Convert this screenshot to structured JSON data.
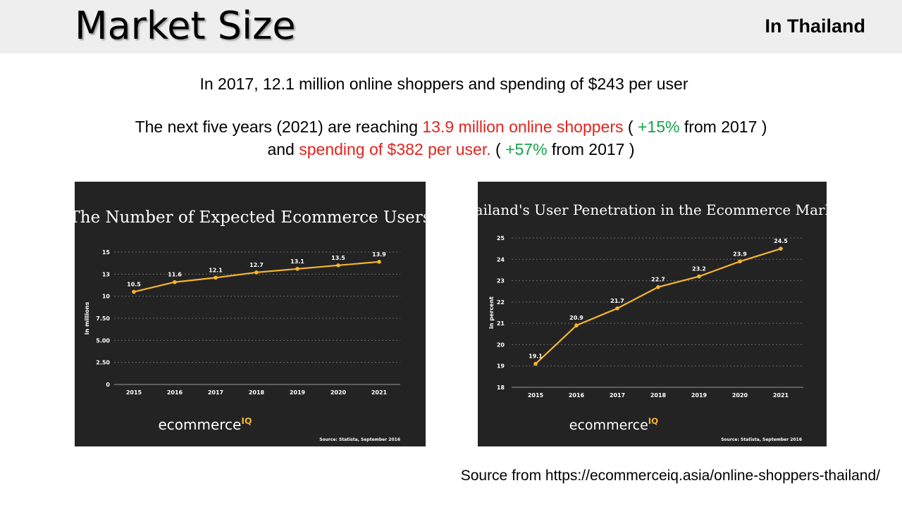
{
  "header": {
    "title": "Market Size",
    "region": "In Thailand"
  },
  "summary": {
    "line1": "In 2017, 12.1 million online shoppers and spending of $243 per user",
    "line2_a": "The next five years (2021) are reaching ",
    "line2_red": "13.9 million online shoppers",
    "line2_b": " ( ",
    "line2_green": "+15%",
    "line2_c": " from 2017 )",
    "line3_a": "and ",
    "line3_red": "spending of $382 per user.",
    "line3_b": " ( ",
    "line3_green": "+57%",
    "line3_c": " from 2017 )"
  },
  "source": "Source from https://ecommerceiq.asia/online-shoppers-thailand/",
  "colors": {
    "line": "#f5b52e",
    "panel": "#232323",
    "red": "#e3241d",
    "green": "#16a34a"
  },
  "chart_data": [
    {
      "type": "line",
      "title": "The Number of Expected Ecommerce Users",
      "ylabel": "in millions",
      "x": [
        "2015",
        "2016",
        "2017",
        "2018",
        "2019",
        "2020",
        "2021"
      ],
      "series": [
        {
          "values": [
            10.5,
            11.6,
            12.1,
            12.7,
            13.1,
            13.5,
            13.9
          ]
        }
      ],
      "yticks": [
        "0",
        "2.50",
        "5.00",
        "7.50",
        "10",
        "13",
        "15"
      ],
      "ylim": [
        0,
        15
      ],
      "grid": true,
      "brand": "ecommerce",
      "brand_sup": "IQ",
      "footnote": "Source: Statista, September 2016"
    },
    {
      "type": "line",
      "title": "Thailand's User Penetration in the Ecommerce Market",
      "ylabel": "in percent",
      "x": [
        "2015",
        "2016",
        "2017",
        "2018",
        "2019",
        "2020",
        "2021"
      ],
      "series": [
        {
          "values": [
            19.1,
            20.9,
            21.7,
            22.7,
            23.2,
            23.9,
            24.5
          ]
        }
      ],
      "yticks": [
        "18",
        "19",
        "20",
        "21",
        "22",
        "23",
        "24",
        "25"
      ],
      "ylim": [
        18,
        25
      ],
      "grid": true,
      "brand": "ecommerce",
      "brand_sup": "IQ",
      "footnote": "Source: Statista, September 2016"
    }
  ]
}
